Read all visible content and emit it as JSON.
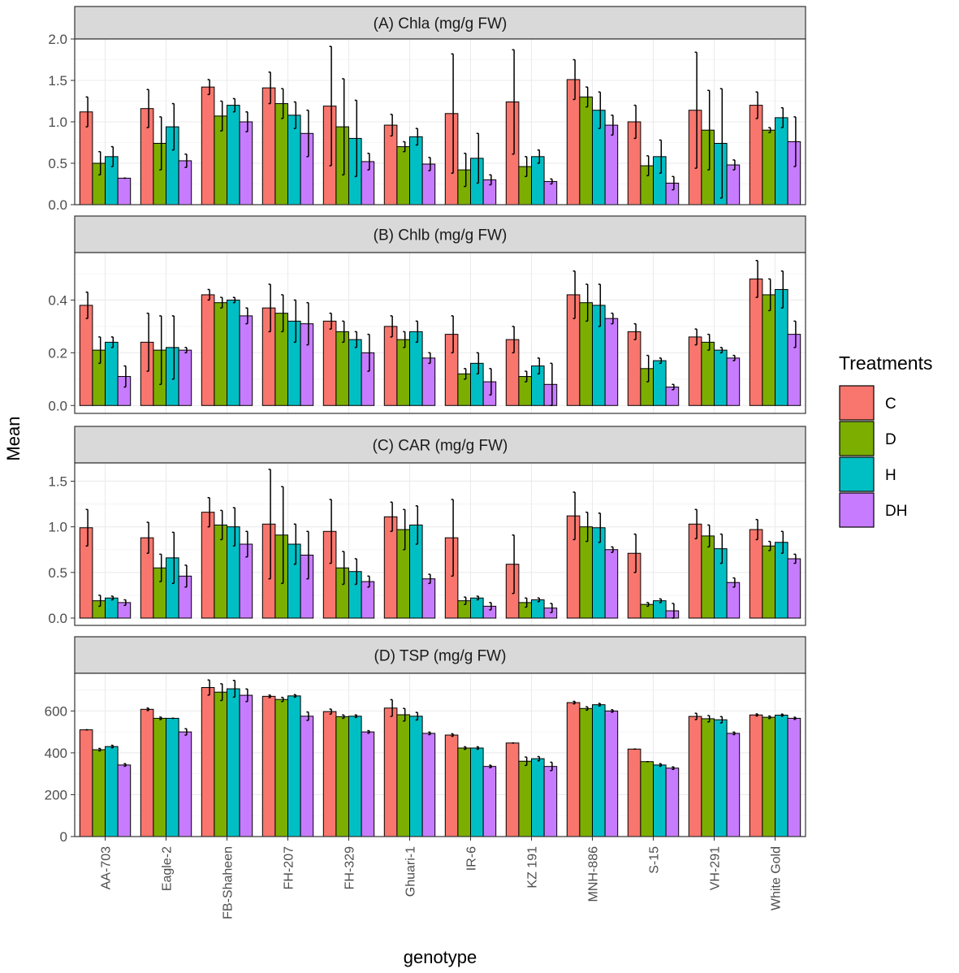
{
  "chart_data": {
    "type": "bar",
    "xlabel": "genotype",
    "ylabel": "Mean",
    "legend": {
      "title": "Treatments",
      "position": "right",
      "entries": [
        {
          "name": "C",
          "color": "#F8766D"
        },
        {
          "name": "D",
          "color": "#7CAE00"
        },
        {
          "name": "H",
          "color": "#00BFC4"
        },
        {
          "name": "DH",
          "color": "#C77CFF"
        }
      ]
    },
    "categories": [
      "AA-703",
      "Eagle-2",
      "FB-Shaheen",
      "FH-207",
      "FH-329",
      "Ghuari-1",
      "IR-6",
      "KZ 191",
      "MNH-886",
      "S-15",
      "VH-291",
      "White Gold"
    ],
    "panels": [
      {
        "title": "(A) Chla (mg/g FW)",
        "ylim": [
          0,
          2.0
        ],
        "yticks": [
          0,
          0.5,
          1.0,
          1.5,
          2.0
        ],
        "ytick_labels": [
          "0.0",
          "0.5",
          "1.0",
          "1.5",
          "2.0"
        ],
        "series": [
          {
            "name": "C",
            "values": [
              1.12,
              1.16,
              1.42,
              1.41,
              1.19,
              0.96,
              1.1,
              1.24,
              1.51,
              1.0,
              1.14,
              1.2
            ],
            "errors": [
              0.18,
              0.23,
              0.09,
              0.19,
              0.72,
              0.13,
              0.72,
              0.63,
              0.24,
              0.2,
              0.7,
              0.16
            ]
          },
          {
            "name": "D",
            "values": [
              0.5,
              0.74,
              1.07,
              1.22,
              0.94,
              0.7,
              0.42,
              0.46,
              1.3,
              0.47,
              0.9,
              0.9
            ],
            "errors": [
              0.14,
              0.32,
              0.18,
              0.18,
              0.58,
              0.06,
              0.2,
              0.12,
              0.12,
              0.12,
              0.48,
              0.03
            ]
          },
          {
            "name": "H",
            "values": [
              0.58,
              0.94,
              1.2,
              1.08,
              0.8,
              0.82,
              0.56,
              0.58,
              1.14,
              0.58,
              0.74,
              1.05
            ],
            "errors": [
              0.12,
              0.28,
              0.08,
              0.16,
              0.46,
              0.1,
              0.3,
              0.08,
              0.22,
              0.2,
              0.66,
              0.12
            ]
          },
          {
            "name": "DH",
            "values": [
              0.32,
              0.53,
              1.0,
              0.86,
              0.52,
              0.49,
              0.3,
              0.28,
              0.96,
              0.26,
              0.48,
              0.76
            ],
            "errors": [
              0.0,
              0.08,
              0.12,
              0.28,
              0.1,
              0.08,
              0.06,
              0.03,
              0.12,
              0.08,
              0.06,
              0.3
            ]
          }
        ]
      },
      {
        "title": "(B) Chlb (mg/g FW)",
        "ylim": [
          -0.03,
          0.58
        ],
        "yticks": [
          0,
          0.2,
          0.4
        ],
        "ytick_labels": [
          "0.0",
          "0.2",
          "0.4"
        ],
        "series": [
          {
            "name": "C",
            "values": [
              0.38,
              0.24,
              0.42,
              0.37,
              0.32,
              0.3,
              0.27,
              0.25,
              0.42,
              0.28,
              0.26,
              0.48
            ],
            "errors": [
              0.05,
              0.11,
              0.02,
              0.09,
              0.03,
              0.04,
              0.07,
              0.05,
              0.09,
              0.03,
              0.03,
              0.07
            ]
          },
          {
            "name": "D",
            "values": [
              0.21,
              0.21,
              0.39,
              0.35,
              0.28,
              0.25,
              0.12,
              0.11,
              0.39,
              0.14,
              0.24,
              0.42
            ],
            "errors": [
              0.05,
              0.13,
              0.02,
              0.07,
              0.04,
              0.03,
              0.02,
              0.02,
              0.07,
              0.05,
              0.03,
              0.06
            ]
          },
          {
            "name": "H",
            "values": [
              0.24,
              0.22,
              0.4,
              0.32,
              0.25,
              0.28,
              0.16,
              0.15,
              0.38,
              0.17,
              0.21,
              0.44
            ],
            "errors": [
              0.02,
              0.12,
              0.01,
              0.08,
              0.03,
              0.04,
              0.04,
              0.03,
              0.08,
              0.01,
              0.01,
              0.07
            ]
          },
          {
            "name": "DH",
            "values": [
              0.11,
              0.21,
              0.34,
              0.31,
              0.2,
              0.18,
              0.09,
              0.08,
              0.33,
              0.07,
              0.18,
              0.27
            ],
            "errors": [
              0.04,
              0.01,
              0.03,
              0.08,
              0.07,
              0.02,
              0.05,
              0.08,
              0.02,
              0.01,
              0.01,
              0.05
            ]
          }
        ]
      },
      {
        "title": "(C) CAR (mg/g FW)",
        "ylim": [
          -0.08,
          1.7
        ],
        "yticks": [
          0,
          0.5,
          1.0,
          1.5
        ],
        "ytick_labels": [
          "0.0",
          "0.5",
          "1.0",
          "1.5"
        ],
        "series": [
          {
            "name": "C",
            "values": [
              0.99,
              0.88,
              1.16,
              1.03,
              0.95,
              1.11,
              0.88,
              0.59,
              1.12,
              0.71,
              1.03,
              0.97
            ],
            "errors": [
              0.2,
              0.17,
              0.16,
              0.6,
              0.35,
              0.16,
              0.42,
              0.32,
              0.26,
              0.21,
              0.16,
              0.11
            ]
          },
          {
            "name": "D",
            "values": [
              0.19,
              0.55,
              1.02,
              0.91,
              0.55,
              0.97,
              0.19,
              0.17,
              1.0,
              0.15,
              0.9,
              0.79
            ],
            "errors": [
              0.06,
              0.15,
              0.16,
              0.53,
              0.18,
              0.22,
              0.04,
              0.05,
              0.16,
              0.02,
              0.12,
              0.05
            ]
          },
          {
            "name": "H",
            "values": [
              0.22,
              0.66,
              1.0,
              0.81,
              0.51,
              1.02,
              0.22,
              0.2,
              0.99,
              0.19,
              0.76,
              0.83
            ],
            "errors": [
              0.02,
              0.28,
              0.21,
              0.22,
              0.14,
              0.21,
              0.02,
              0.02,
              0.16,
              0.02,
              0.16,
              0.12
            ]
          },
          {
            "name": "DH",
            "values": [
              0.17,
              0.46,
              0.81,
              0.69,
              0.4,
              0.43,
              0.13,
              0.11,
              0.75,
              0.08,
              0.39,
              0.65
            ],
            "errors": [
              0.03,
              0.12,
              0.14,
              0.26,
              0.06,
              0.05,
              0.04,
              0.05,
              0.03,
              0.08,
              0.05,
              0.05
            ]
          }
        ]
      },
      {
        "title": "(D) TSP (mg/g FW)",
        "ylim": [
          0,
          780
        ],
        "yticks": [
          0,
          200,
          400,
          600
        ],
        "ytick_labels": [
          "0",
          "200",
          "400",
          "600"
        ],
        "series": [
          {
            "name": "C",
            "values": [
              510,
              608,
              712,
              670,
              597,
              614,
              485,
              447,
              640,
              418,
              574,
              581
            ],
            "errors": [
              0,
              6,
              36,
              6,
              12,
              40,
              6,
              0,
              6,
              0,
              15,
              5
            ]
          },
          {
            "name": "D",
            "values": [
              415,
              565,
              690,
              655,
              573,
              582,
              423,
              360,
              612,
              358,
              563,
              570
            ],
            "errors": [
              6,
              6,
              40,
              10,
              8,
              30,
              6,
              20,
              8,
              0,
              15,
              6
            ]
          },
          {
            "name": "H",
            "values": [
              430,
              565,
              706,
              672,
              575,
              575,
              423,
              372,
              630,
              342,
              558,
              580
            ],
            "errors": [
              6,
              0,
              40,
              6,
              6,
              18,
              6,
              10,
              6,
              6,
              15,
              5
            ]
          },
          {
            "name": "DH",
            "values": [
              342,
              500,
              675,
              575,
              500,
              493,
              335,
              335,
              600,
              327,
              493,
              565
            ],
            "errors": [
              6,
              15,
              30,
              20,
              6,
              6,
              6,
              20,
              6,
              6,
              6,
              5
            ]
          }
        ]
      }
    ]
  }
}
